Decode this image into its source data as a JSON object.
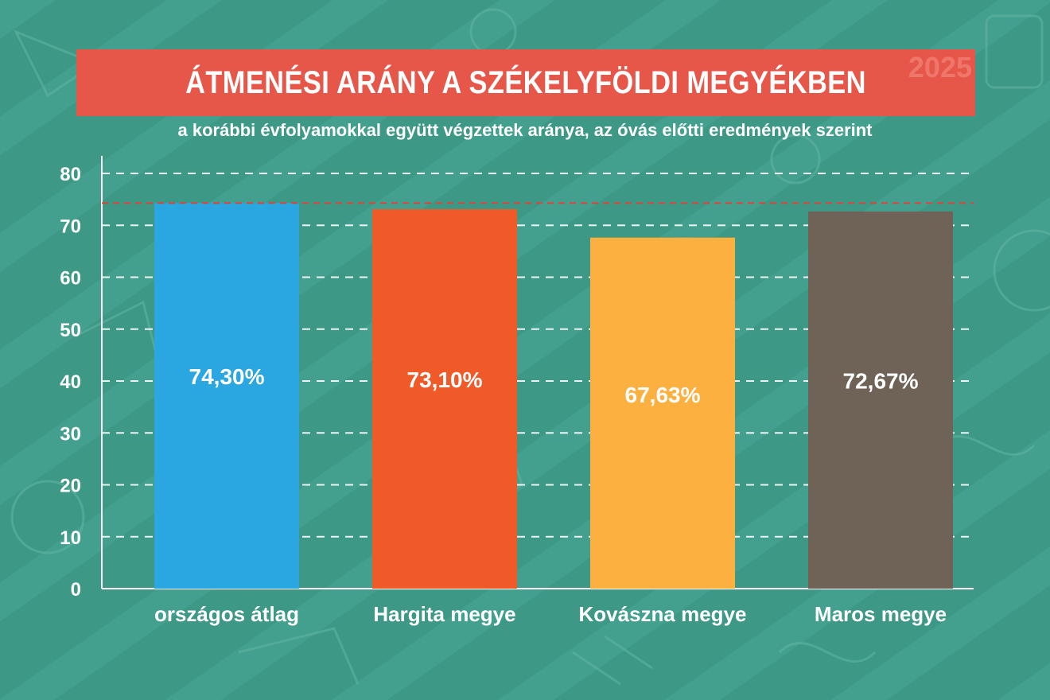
{
  "header": {
    "title": "ÁTMENÉSI ARÁNY A SZÉKELYFÖLDI MEGYÉKBEN",
    "year": "2025",
    "subtitle": "a korábbi évfolyamokkal együtt végzettek aránya, az óvás előtti eredmények szerint"
  },
  "colors": {
    "background": "#3d9886",
    "banner": "#e6574a",
    "reference_line": "#d9453a"
  },
  "chart_data": {
    "type": "bar",
    "title": "ÁTMENÉSI ARÁNY A SZÉKELYFÖLDI MEGYÉKBEN",
    "subtitle": "a korábbi évfolyamokkal együtt végzettek aránya, az óvás előtti eredmények szerint",
    "categories": [
      "országos átlag",
      "Hargita megye",
      "Kovászna megye",
      "Maros megye"
    ],
    "values": [
      74.3,
      73.1,
      67.63,
      72.67
    ],
    "value_labels": [
      "74,30%",
      "73,10%",
      "67,63%",
      "72,67%"
    ],
    "bar_colors": [
      "#2aa6e0",
      "#f05a28",
      "#fbb040",
      "#6f6256"
    ],
    "ylim": [
      0,
      80
    ],
    "yticks": [
      "0",
      "10",
      "20",
      "30",
      "40",
      "50",
      "60",
      "70",
      "80"
    ],
    "reference_line": 74.3,
    "grid": true,
    "xlabel": "",
    "ylabel": ""
  }
}
